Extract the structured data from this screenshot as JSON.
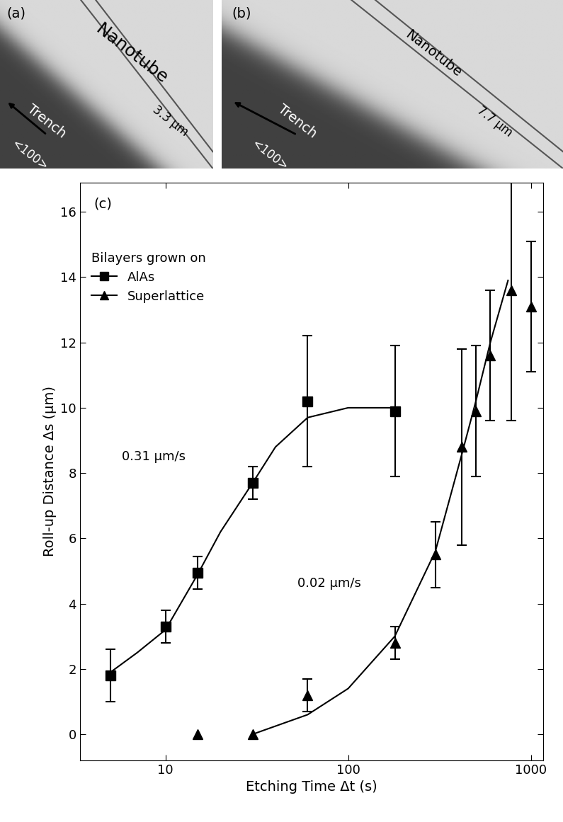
{
  "chart_data": {
    "type": "scatter",
    "label": "(c)",
    "x_label": "Etching Time Δt (s)",
    "y_label": "Roll-up Distance Δs (µm)",
    "log": "x",
    "xlim": [
      3.4,
      1170
    ],
    "xticks": [
      10,
      100,
      1000
    ],
    "ylim": [
      -0.8,
      16.9
    ],
    "yticks": [
      0,
      2,
      4,
      6,
      8,
      10,
      12,
      14,
      16
    ],
    "legend": "upper left",
    "legend_title": "Bilayers grown on",
    "series": [
      {
        "name": "AlAs",
        "color": "#000000",
        "marker": "square",
        "line_style": "solid",
        "x": [
          5,
          10,
          15,
          30,
          60,
          180
        ],
        "values": [
          1.8,
          3.3,
          4.95,
          7.7,
          10.2,
          9.9
        ],
        "errors": [
          0.8,
          0.5,
          0.5,
          0.5,
          2.0,
          2.0
        ],
        "fit": {
          "x": [
            5,
            7,
            10,
            15,
            20,
            30,
            40,
            60,
            100,
            180
          ],
          "values": [
            1.9,
            2.5,
            3.2,
            4.9,
            6.2,
            7.7,
            8.8,
            9.7,
            10.0,
            10.0
          ]
        }
      },
      {
        "name": "Superlattice",
        "color": "#000000",
        "marker": "triangle",
        "line_style": "solid",
        "x": [
          15,
          30,
          60,
          180,
          300,
          420,
          500,
          600,
          780,
          1000
        ],
        "values": [
          0,
          0,
          1.2,
          2.8,
          5.5,
          8.8,
          9.9,
          11.6,
          13.6,
          13.1
        ],
        "errors": [
          null,
          null,
          0.5,
          0.5,
          1.0,
          3.0,
          2.0,
          2.0,
          4.0,
          2.0
        ],
        "fit": {
          "x": [
            30,
            60,
            100,
            180,
            300,
            420,
            500,
            600,
            750
          ],
          "values": [
            0,
            0.6,
            1.4,
            3.0,
            5.6,
            8.6,
            10.2,
            12.0,
            13.9
          ]
        }
      }
    ],
    "annotations": [
      "0.31 µm/s",
      "0.02 µm/s"
    ]
  },
  "micrographs": [
    {
      "label": "(a)",
      "nanotube": "Nanotube",
      "trench": "Trench",
      "direction": "<100>",
      "width": "3.3 µm"
    },
    {
      "label": "(b)",
      "nanotube": "Nanotube",
      "trench": "Trench",
      "direction": "<100>",
      "width": "7.7 µm"
    }
  ]
}
